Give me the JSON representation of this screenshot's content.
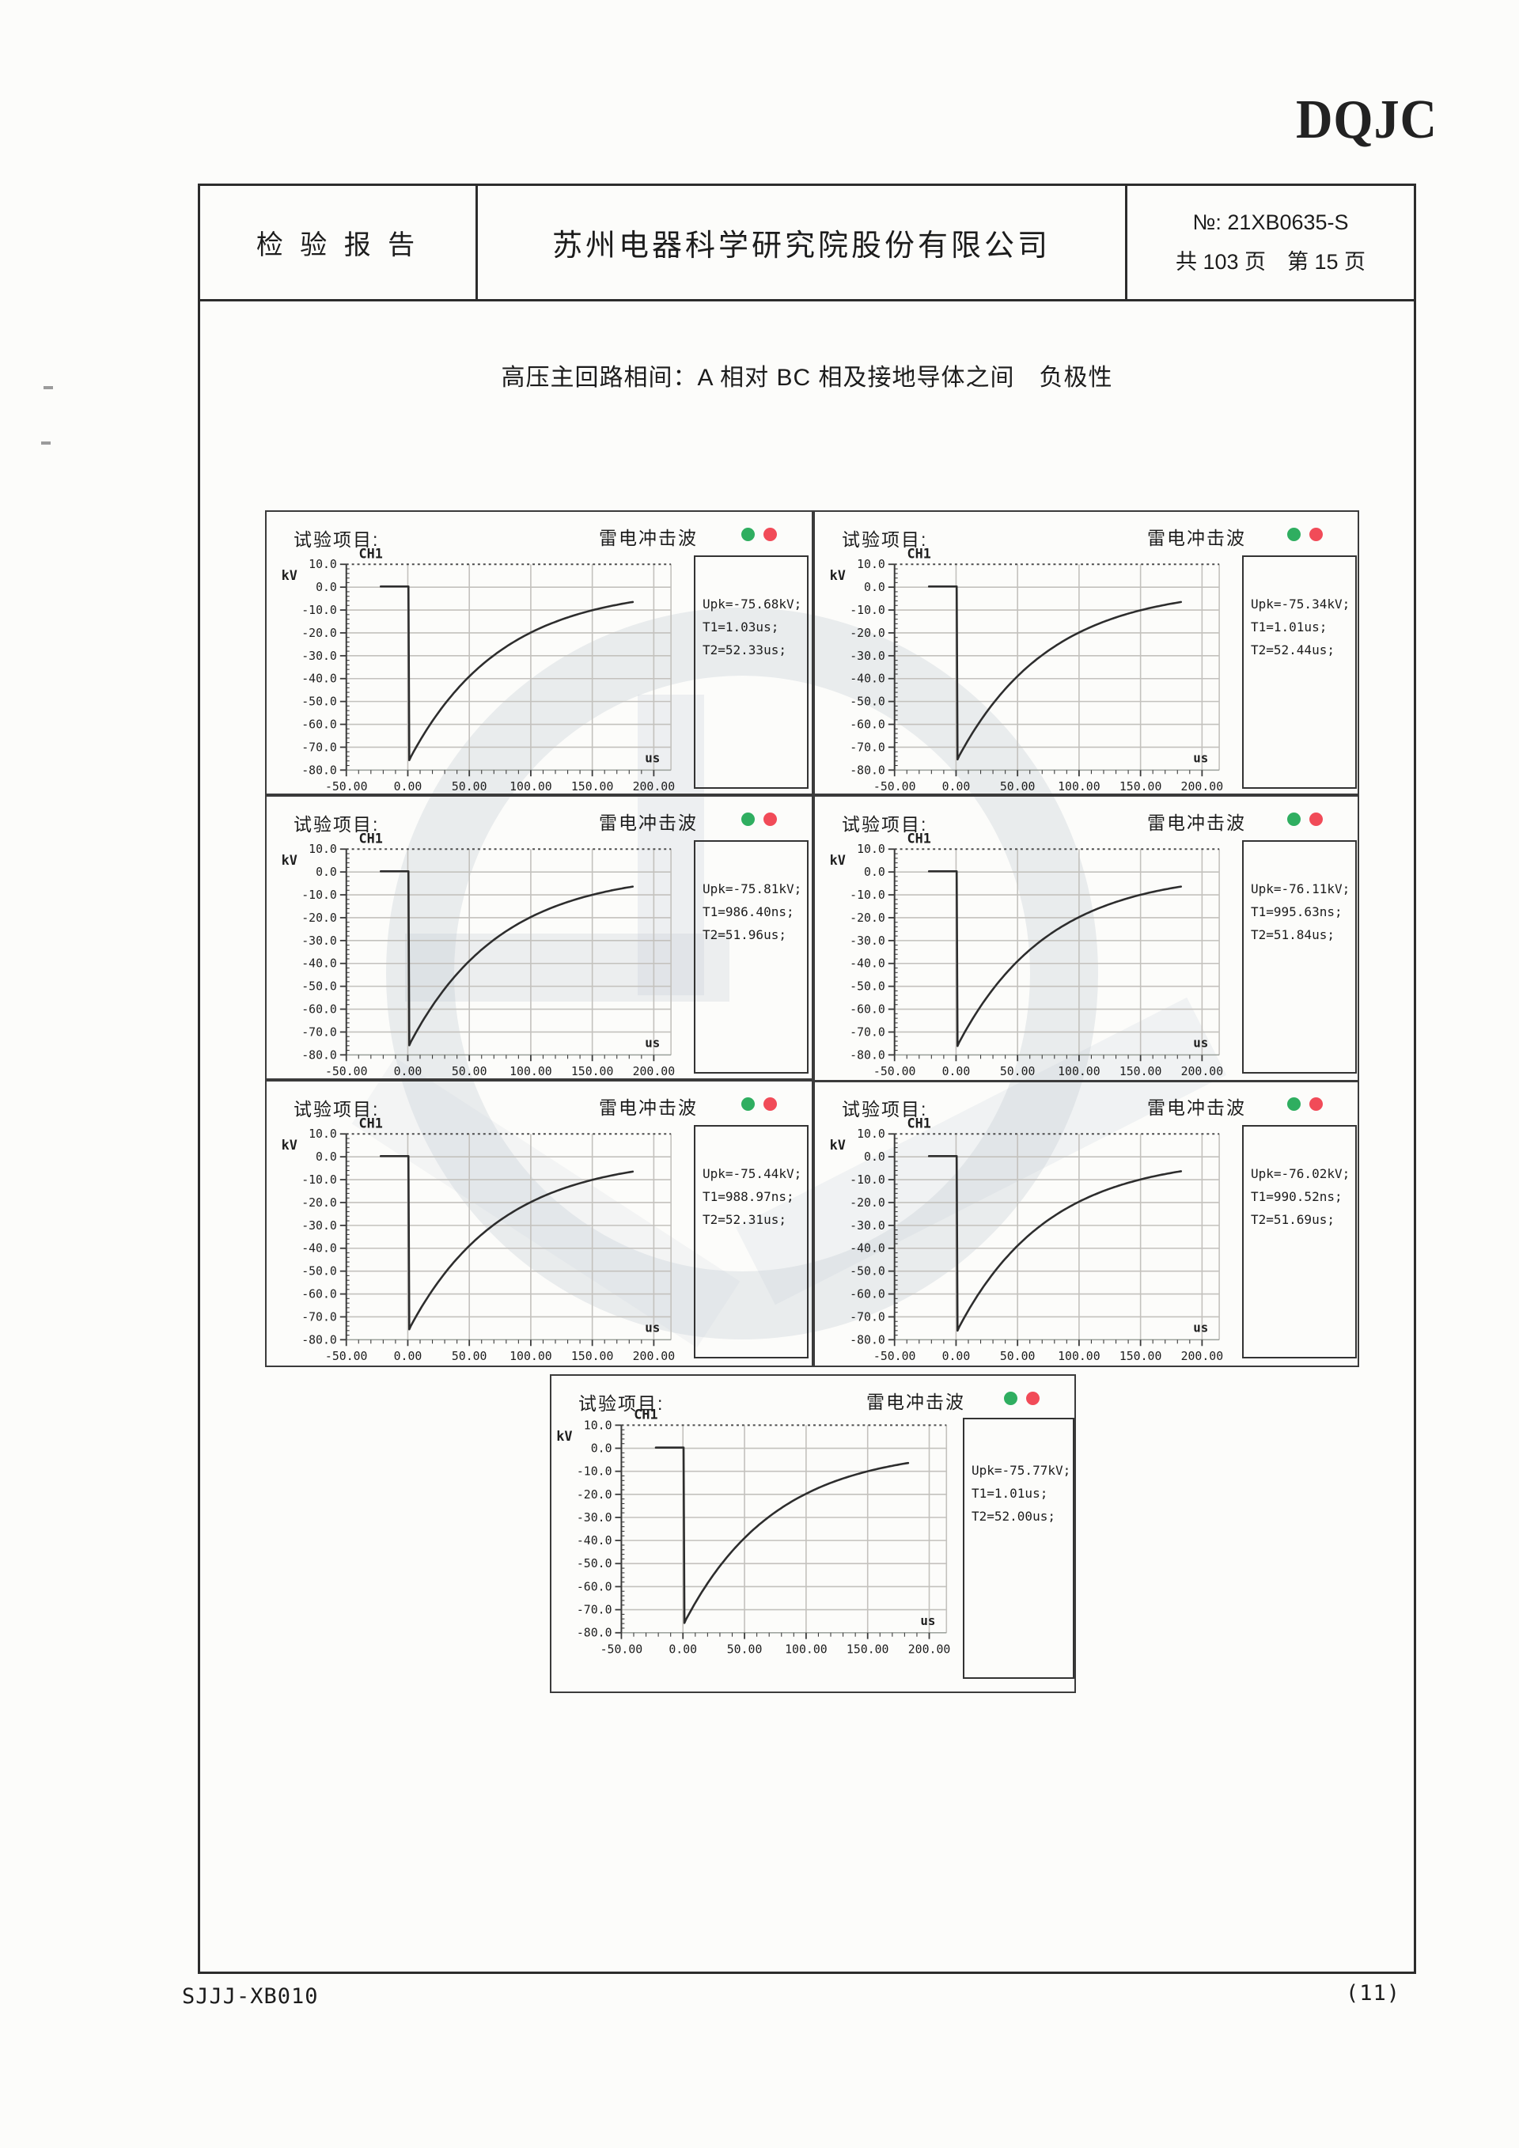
{
  "page": {
    "logo": "DQJC",
    "footer_left": "SJJJ-XB010",
    "footer_right": "(11)"
  },
  "header": {
    "report_title": "检 验 报 告",
    "company": "苏州电器科学研究院股份有限公司",
    "report_no": "№: 21XB0635-S",
    "page_count": "共 103 页　第 15 页"
  },
  "section_title": "高压主回路相间：A 相对 BC 相及接地导体之间　负极性",
  "panel_common": {
    "test_item_label": "试验项目:",
    "wave_title": "雷电冲击波",
    "channel": "CH1",
    "y_unit": "kV",
    "x_unit": "us",
    "indicator_colors": {
      "green": "#2fae60",
      "red": "#f14b58"
    },
    "curve_color": "#2d2d2d",
    "grid_color": "#c3c1bd"
  },
  "panels": [
    {
      "readout": [
        "Upk=-75.68kV;",
        "T1=1.03us;",
        "T2=52.33us;"
      ]
    },
    {
      "readout": [
        "Upk=-75.34kV;",
        "T1=1.01us;",
        "T2=52.44us;"
      ]
    },
    {
      "readout": [
        "Upk=-75.81kV;",
        "T1=986.40ns;",
        "T2=51.96us;"
      ]
    },
    {
      "readout": [
        "Upk=-76.11kV;",
        "T1=995.63ns;",
        "T2=51.84us;"
      ]
    },
    {
      "readout": [
        "Upk=-75.44kV;",
        "T1=988.97ns;",
        "T2=52.31us;"
      ]
    },
    {
      "readout": [
        "Upk=-76.02kV;",
        "T1=990.52ns;",
        "T2=51.69us;"
      ]
    },
    {
      "readout": [
        "Upk=-75.77kV;",
        "T1=1.01us;",
        "T2=52.00us;"
      ]
    }
  ],
  "chart_data": [
    {
      "type": "line",
      "title": "雷电冲击波",
      "channel": "CH1",
      "xlabel": "us",
      "ylabel": "kV",
      "xlim": [
        -50,
        200
      ],
      "ylim": [
        -80,
        10
      ],
      "x_ticks": [
        "-50.00",
        "0.00",
        "50.00",
        "100.00",
        "150.00",
        "200.00"
      ],
      "y_ticks": [
        "10.0",
        "0.0",
        "-10.0",
        "-20.0",
        "-30.0",
        "-40.0",
        "-50.0",
        "-60.0",
        "-70.0",
        "-80.0"
      ],
      "upk_kv": -75.68,
      "t1_us": 1.03,
      "t2_us": 52.33,
      "waveform_model": {
        "flat_from_us": -22,
        "drop_at_us": 0,
        "peak_kv": -75.68,
        "half_value_time_us": 52.33,
        "trace_end_us": 185
      }
    },
    {
      "type": "line",
      "title": "雷电冲击波",
      "channel": "CH1",
      "xlabel": "us",
      "ylabel": "kV",
      "xlim": [
        -50,
        200
      ],
      "ylim": [
        -80,
        10
      ],
      "x_ticks": [
        "-50.00",
        "0.00",
        "50.00",
        "100.00",
        "150.00",
        "200.00"
      ],
      "y_ticks": [
        "10.0",
        "0.0",
        "-10.0",
        "-20.0",
        "-30.0",
        "-40.0",
        "-50.0",
        "-60.0",
        "-70.0",
        "-80.0"
      ],
      "upk_kv": -75.34,
      "t1_us": 1.01,
      "t2_us": 52.44,
      "waveform_model": {
        "flat_from_us": -22,
        "drop_at_us": 0,
        "peak_kv": -75.34,
        "half_value_time_us": 52.44,
        "trace_end_us": 185
      }
    },
    {
      "type": "line",
      "title": "雷电冲击波",
      "channel": "CH1",
      "xlabel": "us",
      "ylabel": "kV",
      "xlim": [
        -50,
        200
      ],
      "ylim": [
        -80,
        10
      ],
      "x_ticks": [
        "-50.00",
        "0.00",
        "50.00",
        "100.00",
        "150.00",
        "200.00"
      ],
      "y_ticks": [
        "10.0",
        "0.0",
        "-10.0",
        "-20.0",
        "-30.0",
        "-40.0",
        "-50.0",
        "-60.0",
        "-70.0",
        "-80.0"
      ],
      "upk_kv": -75.81,
      "t1_us": 0.9864,
      "t2_us": 51.96,
      "waveform_model": {
        "flat_from_us": -22,
        "drop_at_us": 0,
        "peak_kv": -75.81,
        "half_value_time_us": 51.96,
        "trace_end_us": 185
      }
    },
    {
      "type": "line",
      "title": "雷电冲击波",
      "channel": "CH1",
      "xlabel": "us",
      "ylabel": "kV",
      "xlim": [
        -50,
        200
      ],
      "ylim": [
        -80,
        10
      ],
      "x_ticks": [
        "-50.00",
        "0.00",
        "50.00",
        "100.00",
        "150.00",
        "200.00"
      ],
      "y_ticks": [
        "10.0",
        "0.0",
        "-10.0",
        "-20.0",
        "-30.0",
        "-40.0",
        "-50.0",
        "-60.0",
        "-70.0",
        "-80.0"
      ],
      "upk_kv": -76.11,
      "t1_us": 0.99563,
      "t2_us": 51.84,
      "waveform_model": {
        "flat_from_us": -22,
        "drop_at_us": 0,
        "peak_kv": -76.11,
        "half_value_time_us": 51.84,
        "trace_end_us": 185
      }
    },
    {
      "type": "line",
      "title": "雷电冲击波",
      "channel": "CH1",
      "xlabel": "us",
      "ylabel": "kV",
      "xlim": [
        -50,
        200
      ],
      "ylim": [
        -80,
        10
      ],
      "x_ticks": [
        "-50.00",
        "0.00",
        "50.00",
        "100.00",
        "150.00",
        "200.00"
      ],
      "y_ticks": [
        "10.0",
        "0.0",
        "-10.0",
        "-20.0",
        "-30.0",
        "-40.0",
        "-50.0",
        "-60.0",
        "-70.0",
        "-80.0"
      ],
      "upk_kv": -75.44,
      "t1_us": 0.98897,
      "t2_us": 52.31,
      "waveform_model": {
        "flat_from_us": -22,
        "drop_at_us": 0,
        "peak_kv": -75.44,
        "half_value_time_us": 52.31,
        "trace_end_us": 185
      }
    },
    {
      "type": "line",
      "title": "雷电冲击波",
      "channel": "CH1",
      "xlabel": "us",
      "ylabel": "kV",
      "xlim": [
        -50,
        200
      ],
      "ylim": [
        -80,
        10
      ],
      "x_ticks": [
        "-50.00",
        "0.00",
        "50.00",
        "100.00",
        "150.00",
        "200.00"
      ],
      "y_ticks": [
        "10.0",
        "0.0",
        "-10.0",
        "-20.0",
        "-30.0",
        "-40.0",
        "-50.0",
        "-60.0",
        "-70.0",
        "-80.0"
      ],
      "upk_kv": -76.02,
      "t1_us": 0.99052,
      "t2_us": 51.69,
      "waveform_model": {
        "flat_from_us": -22,
        "drop_at_us": 0,
        "peak_kv": -76.02,
        "half_value_time_us": 51.69,
        "trace_end_us": 185
      }
    },
    {
      "type": "line",
      "title": "雷电冲击波",
      "channel": "CH1",
      "xlabel": "us",
      "ylabel": "kV",
      "xlim": [
        -50,
        200
      ],
      "ylim": [
        -80,
        10
      ],
      "x_ticks": [
        "-50.00",
        "0.00",
        "50.00",
        "100.00",
        "150.00",
        "200.00"
      ],
      "y_ticks": [
        "10.0",
        "0.0",
        "-10.0",
        "-20.0",
        "-30.0",
        "-40.0",
        "-50.0",
        "-60.0",
        "-70.0",
        "-80.0"
      ],
      "upk_kv": -75.77,
      "t1_us": 1.01,
      "t2_us": 52.0,
      "waveform_model": {
        "flat_from_us": -22,
        "drop_at_us": 0,
        "peak_kv": -75.77,
        "half_value_time_us": 52.0,
        "trace_end_us": 185
      }
    }
  ]
}
